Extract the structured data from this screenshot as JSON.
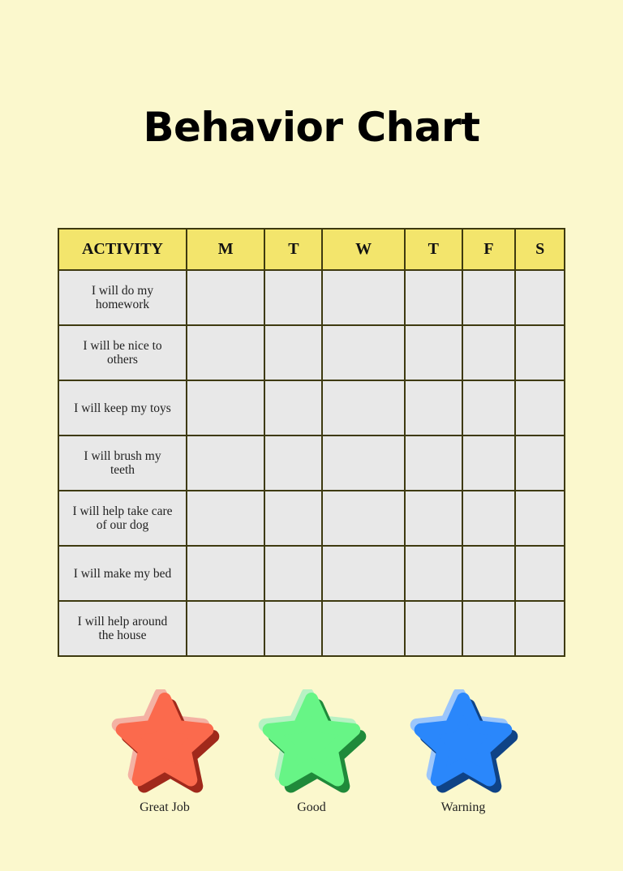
{
  "title": "Behavior Chart",
  "table": {
    "headers": [
      "ACTIVITY",
      "M",
      "T",
      "W",
      "T",
      "F",
      "S"
    ],
    "activities": [
      "I will do my homework",
      "I will be nice to others",
      "I will keep my toys",
      "I will brush my teeth",
      "I will help take care of our dog",
      "I will make my bed",
      "I will help around the house"
    ]
  },
  "legend": [
    {
      "label": "Great Job",
      "color": "#fb6a4d",
      "light": "#f4b2a4",
      "dark": "#a0291b",
      "icon": "star-icon"
    },
    {
      "label": "Good",
      "color": "#67f586",
      "light": "#b7f2c4",
      "dark": "#1f8a3a",
      "icon": "star-icon"
    },
    {
      "label": "Warning",
      "color": "#2a87fb",
      "light": "#9cc6fb",
      "dark": "#0f4386",
      "icon": "star-icon"
    }
  ]
}
